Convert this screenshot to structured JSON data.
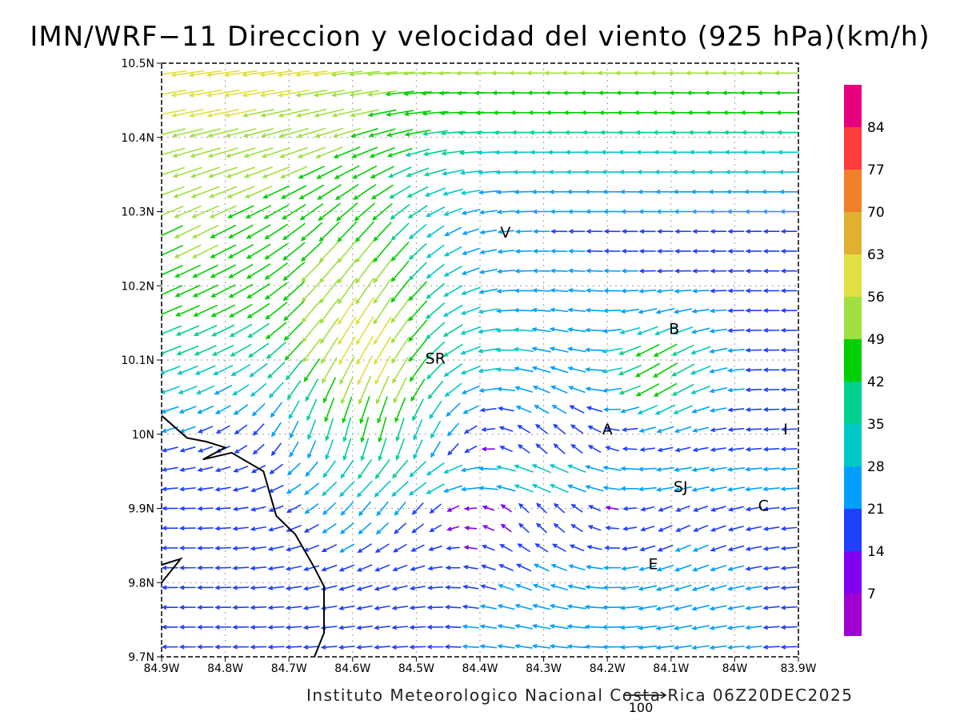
{
  "title": "IMN/WRF−11 Direccion y velocidad del viento (925 hPa)(km/h)",
  "credit": "Instituto Meteorologico Nacional Costa Rica 06Z20DEC2025",
  "reference_vector": {
    "value": 100,
    "label": "100"
  },
  "axes": {
    "x_ticks": [
      "84.9W",
      "84.8W",
      "84.7W",
      "84.6W",
      "84.5W",
      "84.4W",
      "84.3W",
      "84.2W",
      "84.1W",
      "84W",
      "83.9W"
    ],
    "y_ticks": [
      "10.5N",
      "10.4N",
      "10.3N",
      "10.2N",
      "10.1N",
      "10N",
      "9.9N",
      "9.8N",
      "9.7N"
    ],
    "lon_range": [
      -84.9,
      -83.9
    ],
    "lat_range": [
      9.7,
      10.5
    ],
    "grid": "dotted"
  },
  "colorbar": {
    "labels": [
      "84",
      "77",
      "70",
      "63",
      "56",
      "49",
      "42",
      "35",
      "28",
      "21",
      "14",
      "7"
    ],
    "colors": [
      "#e6007e",
      "#ff3b3b",
      "#f0802a",
      "#e0b030",
      "#e0e040",
      "#a0e040",
      "#00d000",
      "#00d090",
      "#00c8c8",
      "#00a0ff",
      "#2040ff",
      "#8000f0",
      "#a000d0"
    ]
  },
  "places": [
    {
      "code": "V",
      "lon": -84.36,
      "lat": 10.265
    },
    {
      "code": "SR",
      "lon": -84.47,
      "lat": 10.095
    },
    {
      "code": "B",
      "lon": -84.095,
      "lat": 10.135
    },
    {
      "code": "A",
      "lon": -84.2,
      "lat": 10.0
    },
    {
      "code": "I",
      "lon": -83.92,
      "lat": 10.0
    },
    {
      "code": "SJ",
      "lon": -84.085,
      "lat": 9.922
    },
    {
      "code": "C",
      "lon": -83.955,
      "lat": 9.897
    },
    {
      "code": "E",
      "lon": -84.128,
      "lat": 9.818
    }
  ],
  "coastline": [
    [
      -84.9,
      10.025
    ],
    [
      -84.86,
      9.995
    ],
    [
      -84.83,
      9.99
    ],
    [
      -84.8,
      9.982
    ],
    [
      -84.835,
      9.966
    ],
    [
      -84.79,
      9.975
    ],
    [
      -84.74,
      9.95
    ],
    [
      -84.72,
      9.89
    ],
    [
      -84.69,
      9.865
    ],
    [
      -84.66,
      9.82
    ],
    [
      -84.645,
      9.795
    ],
    [
      -84.645,
      9.732
    ],
    [
      -84.66,
      9.7
    ]
  ],
  "coastline_south": [
    [
      -84.9,
      9.824
    ],
    [
      -84.87,
      9.832
    ],
    [
      -84.9,
      9.8
    ]
  ]
}
